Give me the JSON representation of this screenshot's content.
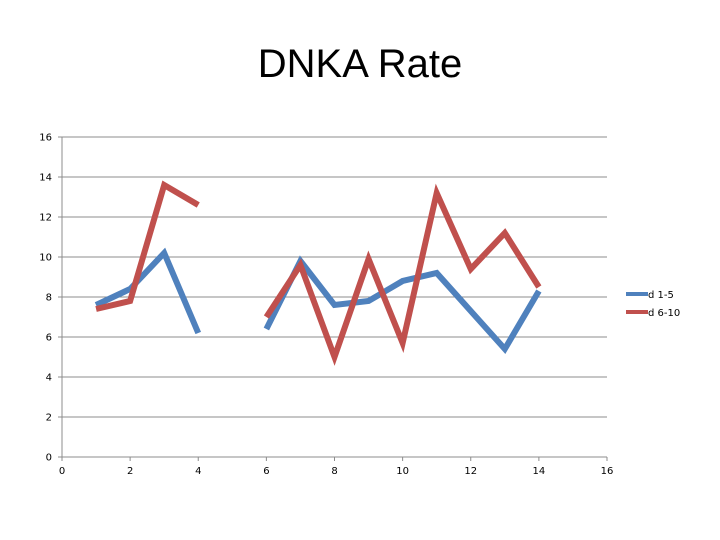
{
  "chart_data": {
    "type": "line",
    "title": "DNKA Rate",
    "xlabel": "",
    "ylabel": "",
    "xlim": [
      0,
      16
    ],
    "ylim": [
      0,
      16
    ],
    "x_ticks": [
      0,
      2,
      4,
      6,
      8,
      10,
      12,
      14,
      16
    ],
    "y_ticks": [
      0,
      2,
      4,
      6,
      8,
      10,
      12,
      14,
      16
    ],
    "grid": "horizontal",
    "legend_position": "right",
    "series": [
      {
        "name": "d 1-5",
        "color": "#4F81BD",
        "segments": [
          [
            [
              1,
              7.6
            ],
            [
              2,
              8.4
            ],
            [
              3,
              10.2
            ],
            [
              4,
              6.2
            ]
          ],
          [
            [
              6,
              6.4
            ],
            [
              7,
              9.8
            ],
            [
              8,
              7.6
            ],
            [
              9,
              7.8
            ],
            [
              10,
              8.8
            ],
            [
              11,
              9.2
            ],
            [
              12,
              7.3
            ],
            [
              13,
              5.4
            ],
            [
              14,
              8.3
            ]
          ]
        ]
      },
      {
        "name": "d 6-10",
        "color": "#C0504D",
        "segments": [
          [
            [
              1,
              7.4
            ],
            [
              2,
              7.8
            ],
            [
              3,
              13.6
            ],
            [
              4,
              12.6
            ]
          ],
          [
            [
              6,
              7.0
            ],
            [
              7,
              9.6
            ],
            [
              8,
              5.0
            ],
            [
              9,
              9.9
            ],
            [
              10,
              5.7
            ],
            [
              11,
              13.2
            ],
            [
              12,
              9.4
            ],
            [
              13,
              11.2
            ],
            [
              14,
              8.5
            ]
          ]
        ]
      }
    ]
  }
}
